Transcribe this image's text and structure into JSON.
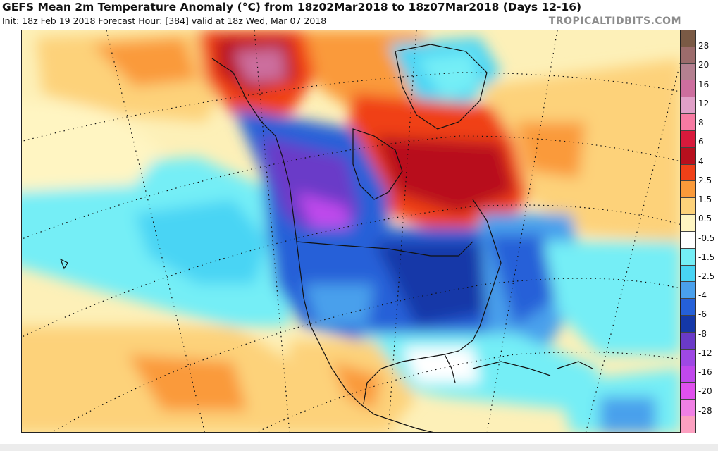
{
  "header": {
    "title": "GEFS Mean 2m Temperature Anomaly (°C) from 18z02Mar2018 to 18z07Mar2018 (Days 12-16)",
    "subtitle": "Init: 18z Feb 19 2018   Forecast Hour: [384]   valid at 18z Wed, Mar 07 2018",
    "watermark": "TROPICALTIDBITS.COM"
  },
  "colorbar": {
    "labels": [
      "28",
      "20",
      "16",
      "12",
      "8",
      "6",
      "4",
      "2.5",
      "1.5",
      "0.5",
      "-0.5",
      "-1.5",
      "-2.5",
      "-4",
      "-6",
      "-8",
      "-12",
      "-16",
      "-20",
      "-28"
    ],
    "colors": [
      "#7a5a45",
      "#9c6c6c",
      "#b48090",
      "#cc6e9e",
      "#e0a0c8",
      "#f77aa2",
      "#d81a3c",
      "#b8101e",
      "#f04018",
      "#fa9a3a",
      "#fdd27a",
      "#fff5c2",
      "#ffffff",
      "#74eef6",
      "#48d4f4",
      "#4aa0ec",
      "#2560d8",
      "#1438a8",
      "#6a3ac8",
      "#9e48e4",
      "#c048ec",
      "#e050ee",
      "#f080e4",
      "#fca0c0"
    ]
  },
  "map": {
    "region": "North America",
    "field": "2m temperature anomaly"
  }
}
